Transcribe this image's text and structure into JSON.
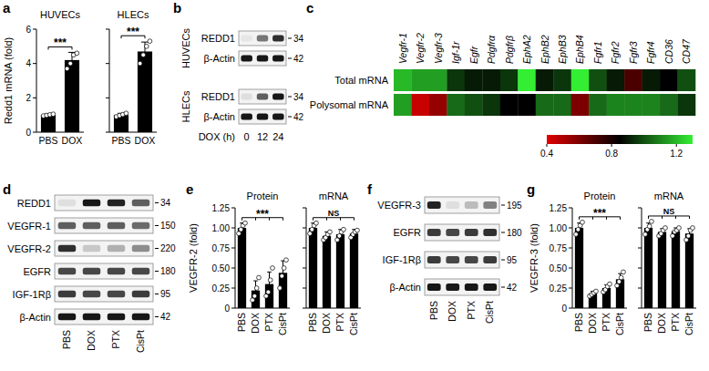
{
  "chart_data": [
    {
      "type": "bar",
      "panel": "a",
      "ylabel": "Redd1 mRNA (fold)",
      "ylim": [
        0,
        6
      ],
      "yticks": [
        0,
        2,
        4,
        6
      ],
      "color": "#000000",
      "groups": [
        {
          "title": "HUVECs",
          "categories": [
            "PBS",
            "DOX"
          ],
          "values": [
            1.0,
            4.2
          ],
          "errors": [
            0.05,
            0.45
          ],
          "points": [
            [
              0.95,
              0.98,
              1.02,
              1.05
            ],
            [
              3.7,
              4.0,
              4.5,
              4.6
            ]
          ],
          "annotation": "***"
        },
        {
          "title": "HLECs",
          "categories": [
            "PBS",
            "DOX"
          ],
          "values": [
            1.0,
            4.7
          ],
          "errors": [
            0.1,
            0.55
          ],
          "points": [
            [
              0.9,
              0.97,
              1.03,
              1.1
            ],
            [
              4.0,
              4.5,
              5.0,
              5.3
            ]
          ],
          "annotation": "***"
        }
      ]
    },
    {
      "type": "blot",
      "panel": "b",
      "lanes_label": "DOX (h)",
      "lanes": [
        "0",
        "12",
        "24"
      ],
      "groups": [
        {
          "title": "HUVECs",
          "rows": [
            {
              "label": "REDD1",
              "mw": 34,
              "bands": [
                0.02,
                0.5,
                0.8
              ]
            },
            {
              "label": "β-Actin",
              "mw": 42,
              "bands": [
                0.9,
                0.9,
                0.9
              ]
            }
          ]
        },
        {
          "title": "HLECs",
          "rows": [
            {
              "label": "REDD1",
              "mw": 34,
              "bands": [
                0.05,
                0.6,
                0.9
              ]
            },
            {
              "label": "β-Actin",
              "mw": 42,
              "bands": [
                0.9,
                0.9,
                0.9
              ]
            }
          ]
        }
      ]
    },
    {
      "type": "heatmap",
      "panel": "c",
      "columns": [
        "Vegfr-1",
        "Vegfr-2",
        "Vegfr-3",
        "Igf-1r",
        "Egfr",
        "Pdgfrα",
        "Pdgfrβ",
        "EphA2",
        "EphB2",
        "EphB3",
        "EphB4",
        "Fgfr1",
        "Fgfr2",
        "Fgfr3",
        "Fgfr4",
        "CD36",
        "CD47"
      ],
      "rows": [
        "Total mRNA",
        "Polysomal mRNA"
      ],
      "cells": [
        [
          1.2,
          1.15,
          1.15,
          0.95,
          0.9,
          0.9,
          0.95,
          1.3,
          0.9,
          0.95,
          1.3,
          1.0,
          0.9,
          0.7,
          0.9,
          0.85,
          1.0
        ],
        [
          1.15,
          0.45,
          0.55,
          1.05,
          1.0,
          0.95,
          0.85,
          0.85,
          1.05,
          1.05,
          0.6,
          1.05,
          1.1,
          1.1,
          1.1,
          1.05,
          0.95
        ]
      ],
      "colors": [
        "#e00000",
        "#000000",
        "#33ee33"
      ],
      "color_range": [
        0.4,
        1.3
      ],
      "color_ticks": [
        0.4,
        0.8,
        1.2
      ]
    },
    {
      "type": "blot",
      "panel": "d",
      "lanes": [
        "PBS",
        "DOX",
        "PTX",
        "CisPt"
      ],
      "groups": [
        {
          "rows": [
            {
              "label": "REDD1",
              "mw": 34,
              "bands": [
                0.05,
                0.9,
                0.85,
                0.6
              ]
            },
            {
              "label": "VEGFR-1",
              "mw": 150,
              "bands": [
                0.6,
                0.6,
                0.6,
                0.55
              ]
            },
            {
              "label": "VEGFR-2",
              "mw": 220,
              "bands": [
                0.8,
                0.15,
                0.25,
                0.4
              ]
            },
            {
              "label": "EGFR",
              "mw": 180,
              "bands": [
                0.7,
                0.7,
                0.7,
                0.7
              ]
            },
            {
              "label": "IGF-1Rβ",
              "mw": 95,
              "bands": [
                0.75,
                0.7,
                0.7,
                0.75
              ]
            },
            {
              "label": "β-Actin",
              "mw": 42,
              "bands": [
                0.9,
                0.9,
                0.9,
                0.9
              ]
            }
          ]
        }
      ]
    },
    {
      "type": "bar",
      "panel": "e",
      "ylabel": "VEGFR-2 (fold)",
      "ylim": [
        0,
        1.25
      ],
      "yticks": [
        0,
        0.25,
        {
          "value": 0.5,
          "label": "0.50"
        },
        0.75,
        {
          "value": 1,
          "label": "1.00"
        },
        1.25
      ],
      "color": "#000000",
      "groups": [
        {
          "title": "Protein",
          "categories": [
            "PBS",
            "DOX",
            "PTX",
            "CisPt"
          ],
          "values": [
            1.0,
            0.22,
            0.3,
            0.44
          ],
          "errors": [
            0.06,
            0.12,
            0.15,
            0.15
          ],
          "points": [
            [
              0.93,
              0.98,
              1.03,
              1.06
            ],
            [
              0.1,
              0.15,
              0.25,
              0.38
            ],
            [
              0.15,
              0.2,
              0.35,
              0.5
            ],
            [
              0.25,
              0.4,
              0.5,
              0.6
            ]
          ],
          "annotation": "***"
        },
        {
          "title": "mRNA",
          "categories": [
            "PBS",
            "DOX",
            "PTX",
            "CisPt"
          ],
          "values": [
            1.0,
            0.9,
            0.92,
            0.93
          ],
          "errors": [
            0.06,
            0.05,
            0.06,
            0.05
          ],
          "points": [
            [
              0.93,
              0.98,
              1.03,
              1.06
            ],
            [
              0.85,
              0.88,
              0.92,
              0.95
            ],
            [
              0.85,
              0.9,
              0.95,
              0.98
            ],
            [
              0.88,
              0.92,
              0.95,
              0.97
            ]
          ],
          "annotation": "NS"
        }
      ]
    },
    {
      "type": "blot",
      "panel": "f",
      "lanes": [
        "PBS",
        "DOX",
        "PTX",
        "CisPt"
      ],
      "groups": [
        {
          "rows": [
            {
              "label": "VEGFR-3",
              "mw": 195,
              "bands": [
                0.85,
                0.05,
                0.2,
                0.45
              ]
            },
            {
              "label": "EGFR",
              "mw": 180,
              "bands": [
                0.75,
                0.7,
                0.75,
                0.8
              ]
            },
            {
              "label": "IGF-1Rβ",
              "mw": 95,
              "bands": [
                0.75,
                0.7,
                0.7,
                0.75
              ]
            },
            {
              "label": "β-Actin",
              "mw": 42,
              "bands": [
                0.9,
                0.9,
                0.9,
                0.9
              ]
            }
          ]
        }
      ]
    },
    {
      "type": "bar",
      "panel": "g",
      "ylabel": "VEGFR-3 (fold)",
      "ylim": [
        0,
        1.25
      ],
      "yticks": [
        0,
        0.25,
        {
          "value": 0.5,
          "label": "0.50"
        },
        0.75,
        {
          "value": 1,
          "label": "1.00"
        },
        1.25
      ],
      "color": "#000000",
      "groups": [
        {
          "title": "Protein",
          "categories": [
            "PBS",
            "DOX",
            "PTX",
            "CisPt"
          ],
          "values": [
            1.0,
            0.18,
            0.25,
            0.36
          ],
          "errors": [
            0.06,
            0.03,
            0.04,
            0.07
          ],
          "points": [
            [
              0.92,
              0.98,
              1.03,
              1.07
            ],
            [
              0.15,
              0.17,
              0.19,
              0.21
            ],
            [
              0.2,
              0.23,
              0.27,
              0.3
            ],
            [
              0.28,
              0.33,
              0.38,
              0.45
            ]
          ],
          "annotation": "***"
        },
        {
          "title": "mRNA",
          "categories": [
            "PBS",
            "DOX",
            "PTX",
            "CisPt"
          ],
          "values": [
            1.0,
            0.95,
            0.96,
            0.93
          ],
          "errors": [
            0.06,
            0.04,
            0.04,
            0.06
          ],
          "points": [
            [
              0.92,
              0.98,
              1.02,
              1.08
            ],
            [
              0.9,
              0.93,
              0.97,
              1.0
            ],
            [
              0.9,
              0.95,
              0.97,
              1.0
            ],
            [
              0.85,
              0.9,
              0.97,
              1.0
            ]
          ],
          "annotation": "NS"
        }
      ]
    }
  ]
}
